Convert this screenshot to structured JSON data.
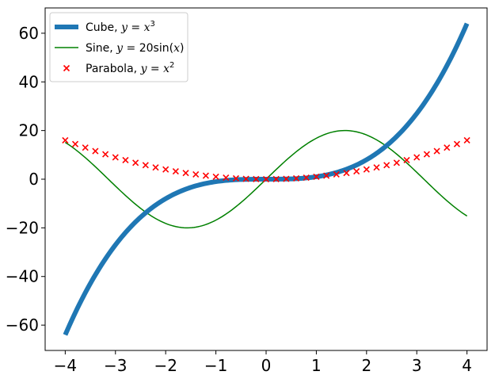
{
  "chart_data": {
    "type": "line",
    "title": "",
    "xlabel": "",
    "ylabel": "",
    "xlim": [
      -4.4,
      4.4
    ],
    "ylim": [
      -70.4,
      70.4
    ],
    "xticks": [
      -4,
      -3,
      -2,
      -1,
      0,
      1,
      2,
      3,
      4
    ],
    "yticks": [
      -60,
      -40,
      -20,
      0,
      20,
      40,
      60
    ],
    "xtick_labels": [
      "−4",
      "−3",
      "−2",
      "−1",
      "0",
      "1",
      "2",
      "3",
      "4"
    ],
    "ytick_labels": [
      "−60",
      "−40",
      "−20",
      "0",
      "20",
      "40",
      "60"
    ],
    "grid": false,
    "legend_position": "top-left",
    "series": [
      {
        "name": "Cube, y = x³",
        "name_parts": {
          "prefix": "Cube, ",
          "var": "y",
          "eq": " = ",
          "base": "x",
          "sup": "3"
        },
        "kind": "line",
        "color": "#1f77b4",
        "x": [
          -4.0,
          -3.6,
          -3.2,
          -2.8,
          -2.4,
          -2.0,
          -1.6,
          -1.2,
          -0.8,
          -0.4,
          0.0,
          0.4,
          0.8,
          1.2,
          1.6,
          2.0,
          2.4,
          2.8,
          3.2,
          3.6,
          4.0
        ],
        "y": [
          -64.0,
          -46.66,
          -32.77,
          -21.95,
          -13.82,
          -8.0,
          -4.1,
          -1.73,
          -0.51,
          -0.06,
          0.0,
          0.06,
          0.51,
          1.73,
          4.1,
          8.0,
          13.82,
          21.95,
          32.77,
          46.66,
          64.0
        ]
      },
      {
        "name": "Sine, y = 20sin(x)",
        "name_parts": {
          "prefix": "Sine, ",
          "var": "y",
          "eq": " = 20sin(",
          "arg": "x",
          "close": ")"
        },
        "kind": "line",
        "color": "#008000",
        "x": [
          -4.0,
          -3.6,
          -3.2,
          -2.8,
          -2.4,
          -2.0,
          -1.6,
          -1.2,
          -0.8,
          -0.4,
          0.0,
          0.4,
          0.8,
          1.2,
          1.6,
          2.0,
          2.4,
          2.8,
          3.2,
          3.6,
          4.0
        ],
        "y": [
          15.14,
          8.85,
          1.17,
          -6.7,
          -13.51,
          -18.19,
          -19.99,
          -18.64,
          -14.35,
          -7.79,
          0.0,
          7.79,
          14.35,
          18.64,
          19.99,
          18.19,
          13.51,
          6.7,
          -1.17,
          -8.85,
          -15.14
        ]
      },
      {
        "name": "Parabola, y = x²",
        "name_parts": {
          "prefix": "Parabola, ",
          "var": "y",
          "eq": " = ",
          "base": "x",
          "sup": "2"
        },
        "kind": "scatter",
        "marker": "x",
        "color": "#ff0000",
        "x": [
          -4.0,
          -3.8,
          -3.6,
          -3.4,
          -3.2,
          -3.0,
          -2.8,
          -2.6,
          -2.4,
          -2.2,
          -2.0,
          -1.8,
          -1.6,
          -1.4,
          -1.2,
          -1.0,
          -0.8,
          -0.6,
          -0.4,
          -0.2,
          0.0,
          0.2,
          0.4,
          0.6,
          0.8,
          1.0,
          1.2,
          1.4,
          1.6,
          1.8,
          2.0,
          2.2,
          2.4,
          2.6,
          2.8,
          3.0,
          3.2,
          3.4,
          3.6,
          3.8,
          4.0
        ],
        "y": [
          16.0,
          14.44,
          12.96,
          11.56,
          10.24,
          9.0,
          7.84,
          6.76,
          5.76,
          4.84,
          4.0,
          3.24,
          2.56,
          1.96,
          1.44,
          1.0,
          0.64,
          0.36,
          0.16,
          0.04,
          0.0,
          0.04,
          0.16,
          0.36,
          0.64,
          1.0,
          1.44,
          1.96,
          2.56,
          3.24,
          4.0,
          4.84,
          5.76,
          6.76,
          7.84,
          9.0,
          10.24,
          11.56,
          12.96,
          14.44,
          16.0
        ]
      }
    ]
  }
}
